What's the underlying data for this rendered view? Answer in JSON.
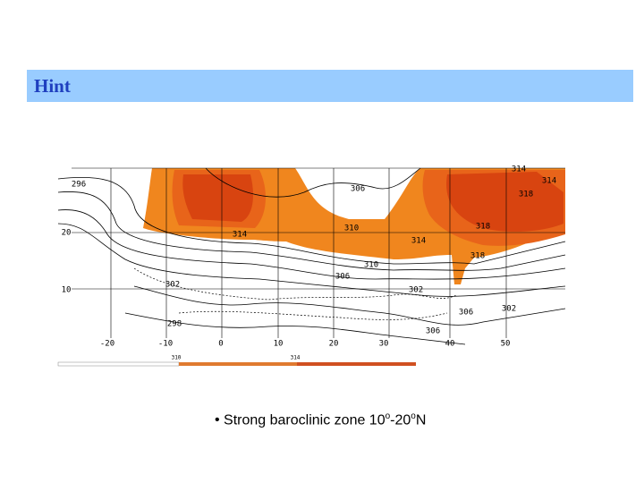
{
  "header": {
    "title": "Hint"
  },
  "map": {
    "lat_labels": [
      "20",
      "10"
    ],
    "lon_labels": [
      "-20",
      "-10",
      "0",
      "10",
      "20",
      "30",
      "40",
      "50"
    ],
    "contour_labels": [
      "296",
      "306",
      "314",
      "314",
      "318",
      "310",
      "314",
      "318",
      "314",
      "318",
      "310",
      "306",
      "302",
      "302",
      "298",
      "306",
      "306",
      "302"
    ],
    "colorbar_labels": [
      "310",
      "314"
    ]
  },
  "bullet": {
    "parts": [
      "Strong baroclinic zone 10",
      "o",
      "-20",
      "o",
      "N"
    ]
  }
}
